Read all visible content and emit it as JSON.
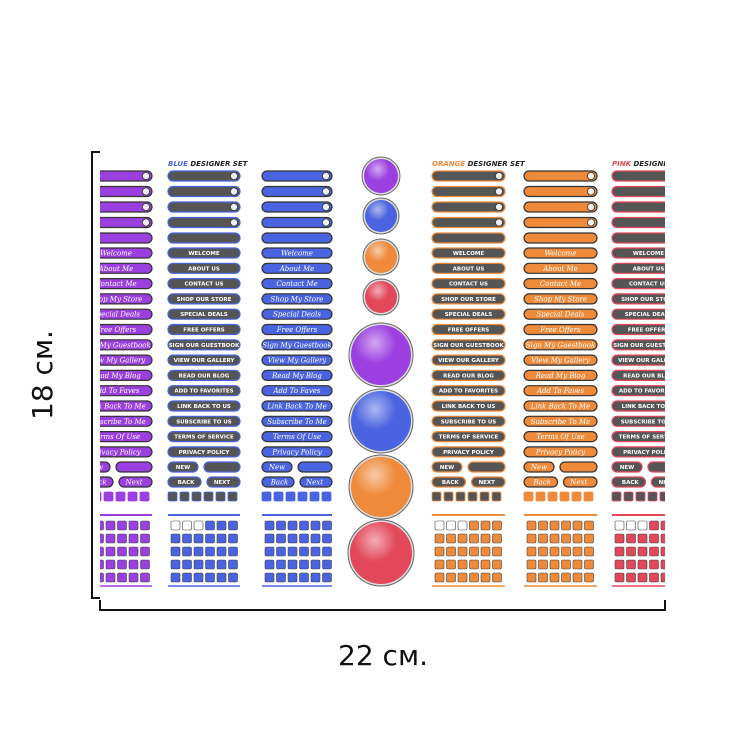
{
  "dimensions": {
    "height": "18 см.",
    "width": "22 см."
  },
  "sets": [
    {
      "name": "BLUE",
      "suffix": "DESIGNER SET"
    },
    {
      "name": "ORANGE",
      "suffix": "DESIGNER SET"
    },
    {
      "name": "PINK",
      "suffix": "DESIGNER"
    }
  ],
  "caps_buttons": [
    "WELCOME",
    "ABOUT US",
    "CONTACT US",
    "SHOP OUR STORE",
    "SPECIAL DEALS",
    "FREE OFFERS",
    "SIGN OUR GUESTBOOK",
    "VIEW OUR GALLERY",
    "READ OUR BLOG",
    "ADD TO FAVORITES",
    "LINK BACK TO US",
    "SUBSCRIBE TO US",
    "TERMS OF SERVICE",
    "PRIVACY POLICY"
  ],
  "script_buttons": [
    "Welcome",
    "About Me",
    "Contact Me",
    "Shop My Store",
    "Special Deals",
    "Free Offers",
    "Sign My Guestbook",
    "View My Gallery",
    "Read My Blog",
    "Add To Faves",
    "Link Back To Me",
    "Subscribe To Me",
    "Terms Of Use",
    "Privacy Policy"
  ],
  "nav": {
    "caps": {
      "new": "NEW",
      "back": "BACK",
      "next": "NEXT"
    },
    "script": {
      "new": "New",
      "back": "Back",
      "next": "Next"
    }
  }
}
